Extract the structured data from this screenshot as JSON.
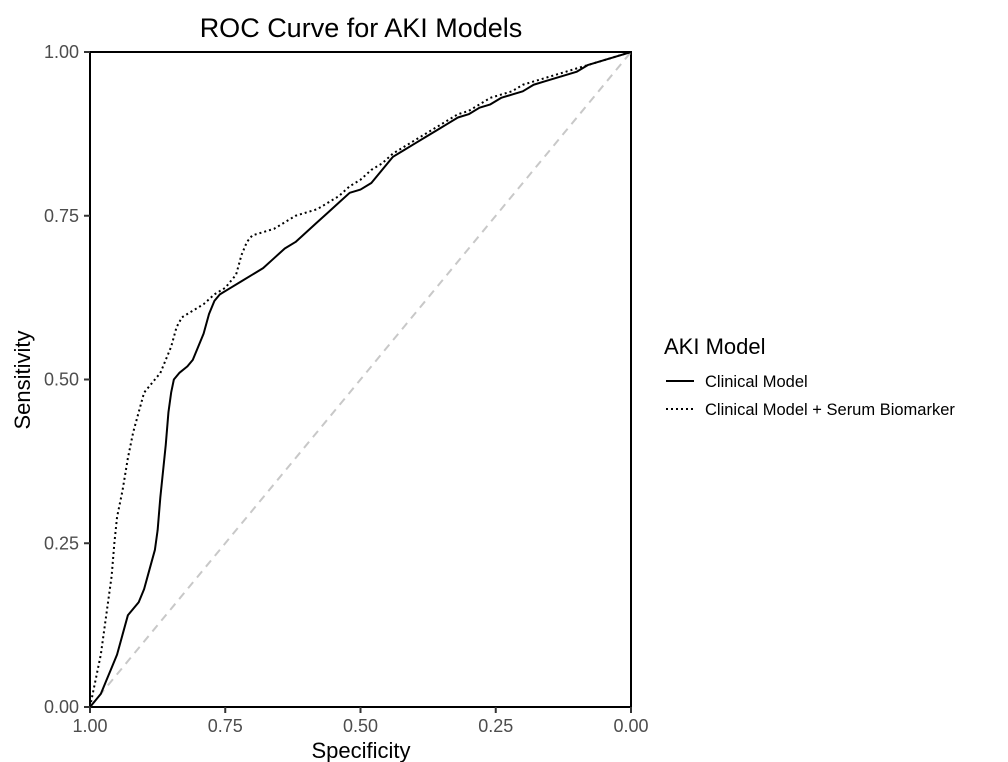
{
  "chart_data": {
    "type": "line",
    "title": "ROC Curve for AKI Models",
    "xlabel": "Specificity",
    "ylabel": "Sensitivity",
    "xlim": [
      1.0,
      0.0
    ],
    "ylim": [
      0.0,
      1.0
    ],
    "x_reversed": true,
    "x_ticks": [
      "1.00",
      "0.75",
      "0.50",
      "0.25",
      "0.00"
    ],
    "y_ticks": [
      "0.00",
      "0.25",
      "0.50",
      "0.75",
      "1.00"
    ],
    "x_tick_values": [
      1.0,
      0.75,
      0.5,
      0.25,
      0.0
    ],
    "y_tick_values": [
      0.0,
      0.25,
      0.5,
      0.75,
      1.0
    ],
    "grid": false,
    "legend_position": "right",
    "legend_title": "AKI Model",
    "reference_line": {
      "style": "dashed",
      "color": "#c8c8c8",
      "points": [
        [
          1.0,
          0.0
        ],
        [
          0.0,
          1.0
        ]
      ]
    },
    "series": [
      {
        "name": "Clinical Model",
        "style": "solid",
        "color": "#000000",
        "points": [
          [
            1.0,
            0.0
          ],
          [
            0.99,
            0.01
          ],
          [
            0.98,
            0.02
          ],
          [
            0.97,
            0.04
          ],
          [
            0.96,
            0.06
          ],
          [
            0.95,
            0.08
          ],
          [
            0.94,
            0.11
          ],
          [
            0.93,
            0.14
          ],
          [
            0.92,
            0.15
          ],
          [
            0.91,
            0.16
          ],
          [
            0.9,
            0.18
          ],
          [
            0.89,
            0.21
          ],
          [
            0.88,
            0.24
          ],
          [
            0.875,
            0.27
          ],
          [
            0.87,
            0.32
          ],
          [
            0.865,
            0.36
          ],
          [
            0.86,
            0.4
          ],
          [
            0.855,
            0.45
          ],
          [
            0.85,
            0.48
          ],
          [
            0.845,
            0.5
          ],
          [
            0.835,
            0.51
          ],
          [
            0.82,
            0.52
          ],
          [
            0.81,
            0.53
          ],
          [
            0.8,
            0.55
          ],
          [
            0.79,
            0.57
          ],
          [
            0.78,
            0.6
          ],
          [
            0.77,
            0.62
          ],
          [
            0.76,
            0.63
          ],
          [
            0.74,
            0.64
          ],
          [
            0.72,
            0.65
          ],
          [
            0.7,
            0.66
          ],
          [
            0.68,
            0.67
          ],
          [
            0.66,
            0.685
          ],
          [
            0.64,
            0.7
          ],
          [
            0.62,
            0.71
          ],
          [
            0.6,
            0.725
          ],
          [
            0.58,
            0.74
          ],
          [
            0.56,
            0.755
          ],
          [
            0.54,
            0.77
          ],
          [
            0.52,
            0.785
          ],
          [
            0.5,
            0.79
          ],
          [
            0.48,
            0.8
          ],
          [
            0.46,
            0.82
          ],
          [
            0.44,
            0.84
          ],
          [
            0.42,
            0.85
          ],
          [
            0.4,
            0.86
          ],
          [
            0.38,
            0.87
          ],
          [
            0.36,
            0.88
          ],
          [
            0.34,
            0.89
          ],
          [
            0.32,
            0.9
          ],
          [
            0.3,
            0.905
          ],
          [
            0.28,
            0.915
          ],
          [
            0.26,
            0.92
          ],
          [
            0.24,
            0.93
          ],
          [
            0.22,
            0.935
          ],
          [
            0.2,
            0.94
          ],
          [
            0.18,
            0.95
          ],
          [
            0.16,
            0.955
          ],
          [
            0.14,
            0.96
          ],
          [
            0.12,
            0.965
          ],
          [
            0.1,
            0.97
          ],
          [
            0.08,
            0.98
          ],
          [
            0.06,
            0.985
          ],
          [
            0.04,
            0.99
          ],
          [
            0.02,
            0.995
          ],
          [
            0.0,
            1.0
          ]
        ]
      },
      {
        "name": "Clinical Model + Serum Biomarker",
        "style": "dotted",
        "color": "#000000",
        "points": [
          [
            1.0,
            0.0
          ],
          [
            0.99,
            0.04
          ],
          [
            0.98,
            0.08
          ],
          [
            0.97,
            0.14
          ],
          [
            0.96,
            0.2
          ],
          [
            0.955,
            0.25
          ],
          [
            0.95,
            0.29
          ],
          [
            0.94,
            0.33
          ],
          [
            0.93,
            0.38
          ],
          [
            0.92,
            0.42
          ],
          [
            0.91,
            0.45
          ],
          [
            0.9,
            0.48
          ],
          [
            0.89,
            0.49
          ],
          [
            0.88,
            0.5
          ],
          [
            0.87,
            0.51
          ],
          [
            0.86,
            0.53
          ],
          [
            0.85,
            0.55
          ],
          [
            0.84,
            0.58
          ],
          [
            0.83,
            0.595
          ],
          [
            0.81,
            0.605
          ],
          [
            0.79,
            0.615
          ],
          [
            0.77,
            0.63
          ],
          [
            0.75,
            0.64
          ],
          [
            0.73,
            0.66
          ],
          [
            0.72,
            0.69
          ],
          [
            0.71,
            0.71
          ],
          [
            0.7,
            0.72
          ],
          [
            0.68,
            0.725
          ],
          [
            0.66,
            0.73
          ],
          [
            0.64,
            0.74
          ],
          [
            0.62,
            0.75
          ],
          [
            0.6,
            0.755
          ],
          [
            0.58,
            0.76
          ],
          [
            0.56,
            0.77
          ],
          [
            0.54,
            0.78
          ],
          [
            0.52,
            0.795
          ],
          [
            0.5,
            0.805
          ],
          [
            0.48,
            0.82
          ],
          [
            0.46,
            0.83
          ],
          [
            0.44,
            0.845
          ],
          [
            0.42,
            0.855
          ],
          [
            0.4,
            0.865
          ],
          [
            0.38,
            0.875
          ],
          [
            0.36,
            0.885
          ],
          [
            0.34,
            0.895
          ],
          [
            0.32,
            0.905
          ],
          [
            0.3,
            0.91
          ],
          [
            0.28,
            0.92
          ],
          [
            0.26,
            0.93
          ],
          [
            0.24,
            0.935
          ],
          [
            0.22,
            0.94
          ],
          [
            0.2,
            0.95
          ],
          [
            0.18,
            0.955
          ],
          [
            0.16,
            0.96
          ],
          [
            0.14,
            0.965
          ],
          [
            0.12,
            0.97
          ],
          [
            0.1,
            0.975
          ],
          [
            0.08,
            0.98
          ],
          [
            0.06,
            0.985
          ],
          [
            0.04,
            0.99
          ],
          [
            0.02,
            0.995
          ],
          [
            0.0,
            1.0
          ]
        ]
      }
    ]
  }
}
